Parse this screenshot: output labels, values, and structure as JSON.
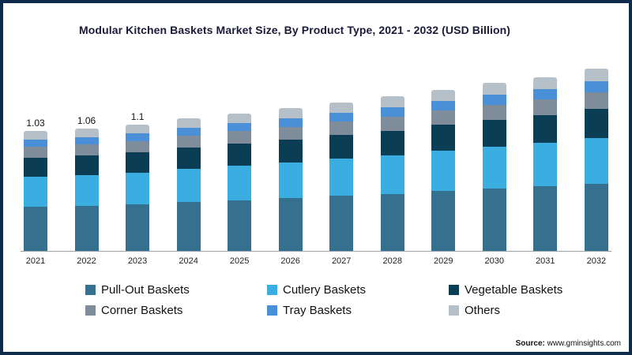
{
  "chart_data": {
    "type": "bar",
    "stacked": true,
    "title": "Modular Kitchen Baskets Market Size, By Product Type, 2021 - 2032 (USD Billion)",
    "categories": [
      "2021",
      "2022",
      "2023",
      "2024",
      "2025",
      "2026",
      "2027",
      "2028",
      "2029",
      "2030",
      "2031",
      "2032"
    ],
    "series": [
      {
        "name": "Pull-Out Baskets",
        "color": "#35708e",
        "values": [
          0.381,
          0.392,
          0.407,
          0.422,
          0.44,
          0.459,
          0.477,
          0.496,
          0.518,
          0.54,
          0.562,
          0.585
        ]
      },
      {
        "name": "Cutlery Baskets",
        "color": "#3aaee0",
        "values": [
          0.258,
          0.265,
          0.275,
          0.285,
          0.298,
          0.31,
          0.323,
          0.335,
          0.35,
          0.365,
          0.38,
          0.395
        ]
      },
      {
        "name": "Vegetable Baskets",
        "color": "#0b3d54",
        "values": [
          0.165,
          0.17,
          0.176,
          0.182,
          0.19,
          0.198,
          0.206,
          0.214,
          0.224,
          0.234,
          0.243,
          0.253
        ]
      },
      {
        "name": "Corner Baskets",
        "color": "#7f8c99",
        "values": [
          0.093,
          0.095,
          0.099,
          0.103,
          0.107,
          0.112,
          0.116,
          0.121,
          0.126,
          0.131,
          0.137,
          0.142
        ]
      },
      {
        "name": "Tray Baskets",
        "color": "#4a90d9",
        "values": [
          0.062,
          0.064,
          0.066,
          0.068,
          0.071,
          0.074,
          0.077,
          0.08,
          0.084,
          0.088,
          0.091,
          0.095
        ]
      },
      {
        "name": "Others",
        "color": "#b6c0c9",
        "values": [
          0.072,
          0.074,
          0.077,
          0.08,
          0.083,
          0.087,
          0.09,
          0.094,
          0.098,
          0.102,
          0.106,
          0.111
        ]
      }
    ],
    "totals": [
      1.03,
      1.06,
      1.1,
      1.14,
      1.19,
      1.24,
      1.29,
      1.34,
      1.4,
      1.46,
      1.52,
      1.58
    ],
    "bar_labels": [
      "1.03",
      "1.06",
      "1.1",
      "",
      "",
      "",
      "",
      "",
      "",
      "",
      "",
      ""
    ],
    "xlabel": "",
    "ylabel": "",
    "ylim": [
      0,
      1.7
    ],
    "grid": false,
    "legend_position": "bottom"
  },
  "source": {
    "label": "Source:",
    "url": " www.gminsights.com"
  },
  "frame": {
    "border_color": "#0d2b4b"
  }
}
